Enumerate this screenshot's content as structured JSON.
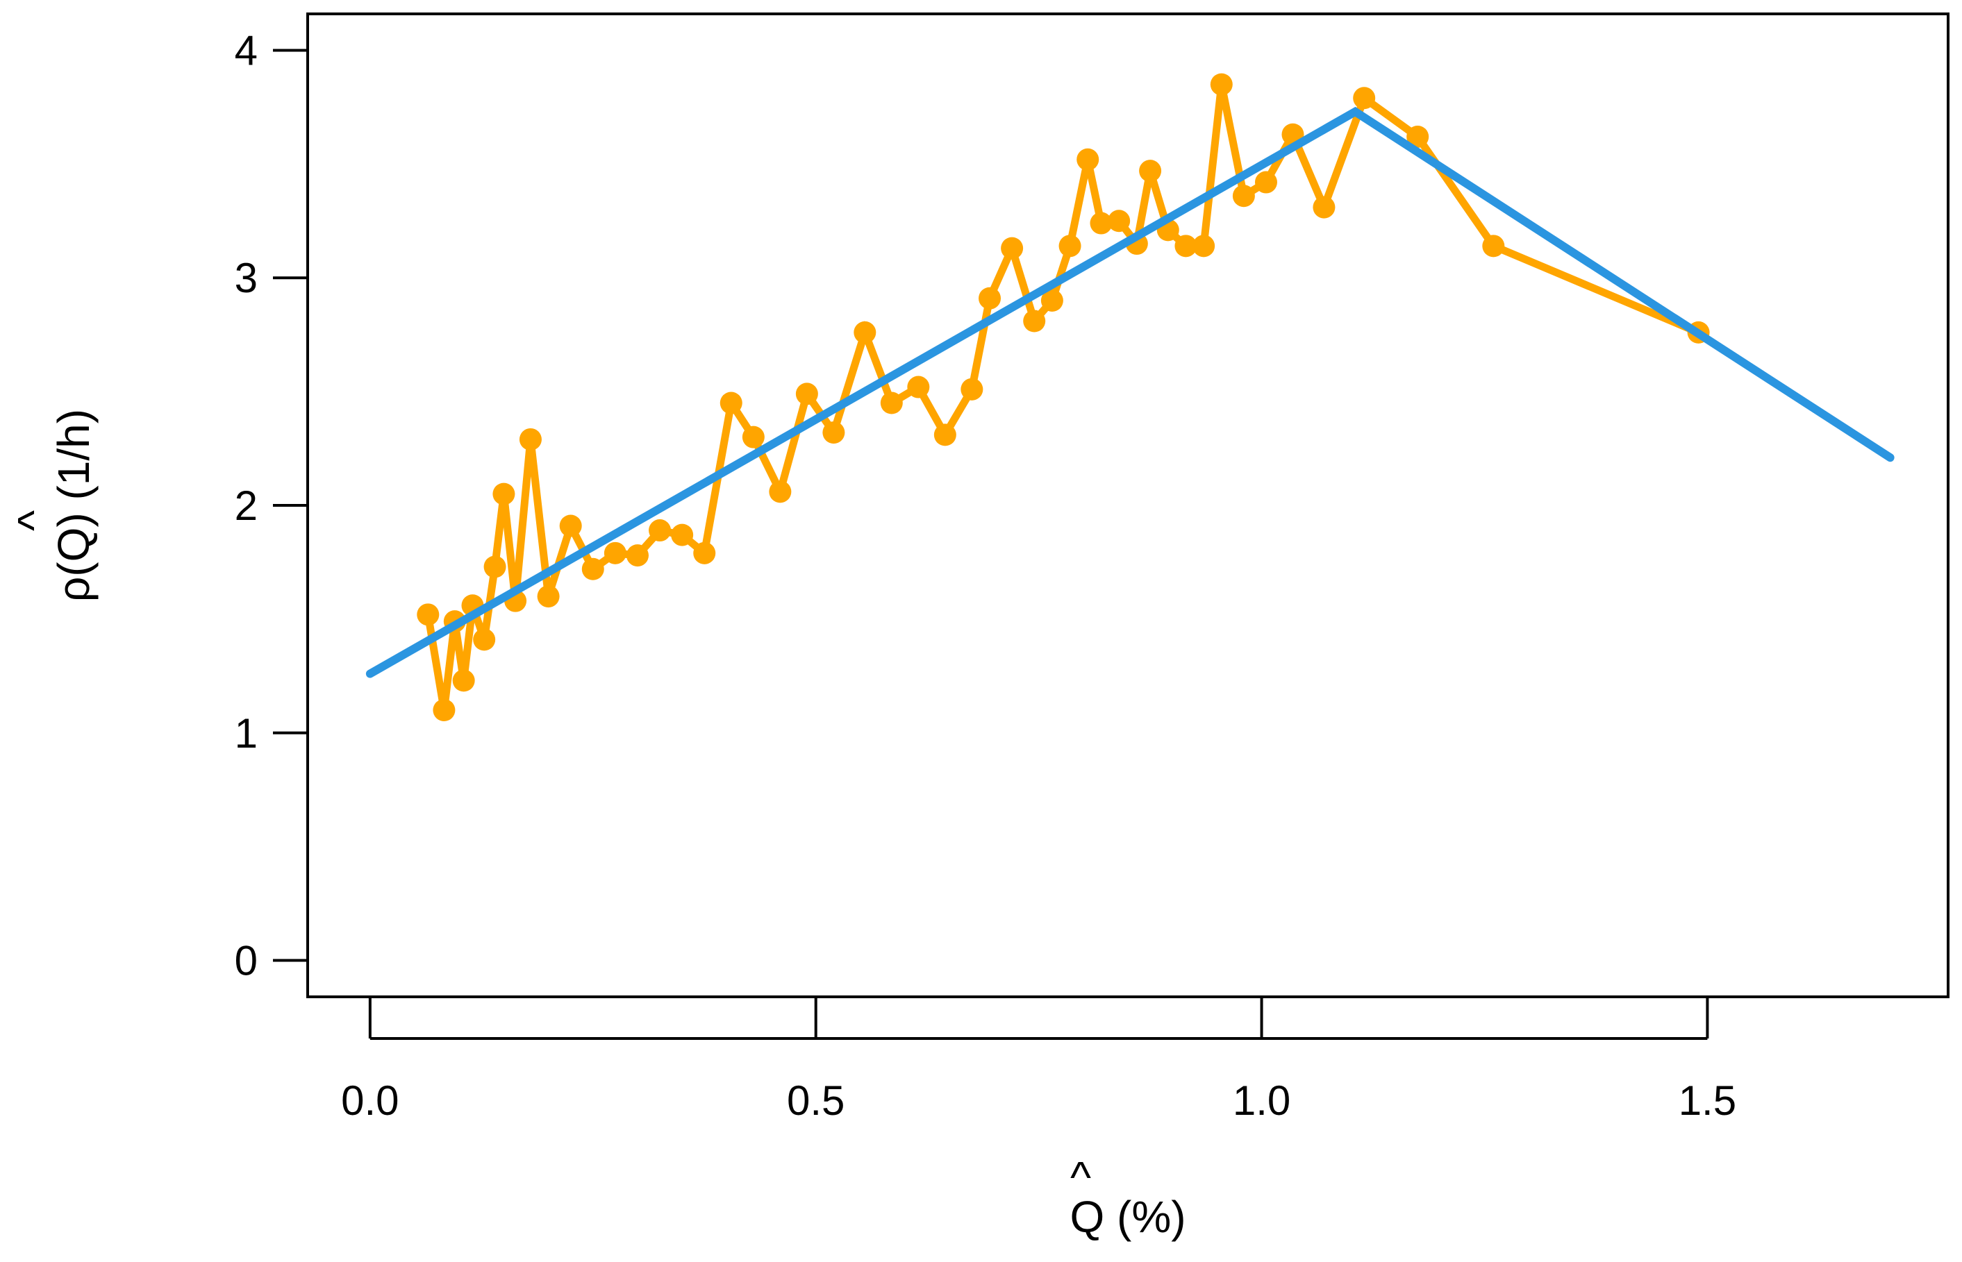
{
  "chart_data": {
    "type": "line",
    "title": "",
    "xlabel": "Q (%)",
    "xlabel_hat": "^",
    "ylabel": "ρ(Q) (1/h)",
    "ylabel_hat": "^",
    "xlim": [
      -0.07,
      1.77
    ],
    "ylim": [
      -0.16,
      4.16
    ],
    "xticks": [
      0.0,
      0.5,
      1.0,
      1.5
    ],
    "xtick_labels": [
      "0.0",
      "0.5",
      "1.0",
      "1.5"
    ],
    "yticks": [
      0,
      1,
      2,
      3,
      4
    ],
    "ytick_labels": [
      "0",
      "1",
      "2",
      "3",
      "4"
    ],
    "grid": false,
    "legend": false,
    "series": [
      {
        "color": "#FFA500",
        "markers": true,
        "x": [
          0.065,
          0.083,
          0.095,
          0.105,
          0.115,
          0.128,
          0.14,
          0.15,
          0.163,
          0.18,
          0.2,
          0.225,
          0.25,
          0.275,
          0.3,
          0.325,
          0.35,
          0.375,
          0.405,
          0.43,
          0.46,
          0.49,
          0.52,
          0.555,
          0.585,
          0.615,
          0.645,
          0.675,
          0.695,
          0.72,
          0.745,
          0.765,
          0.785,
          0.805,
          0.82,
          0.84,
          0.86,
          0.875,
          0.895,
          0.915,
          0.935,
          0.955,
          0.98,
          1.005,
          1.035,
          1.07,
          1.115,
          1.175,
          1.26,
          1.49
        ],
        "y": [
          1.52,
          1.1,
          1.49,
          1.23,
          1.56,
          1.41,
          1.73,
          2.05,
          1.58,
          2.29,
          1.6,
          1.91,
          1.72,
          1.79,
          1.78,
          1.89,
          1.87,
          1.79,
          2.45,
          2.3,
          2.06,
          2.49,
          2.32,
          2.76,
          2.45,
          2.52,
          2.31,
          2.51,
          2.91,
          3.13,
          2.81,
          2.9,
          3.14,
          3.52,
          3.24,
          3.25,
          3.15,
          3.47,
          3.21,
          3.14,
          3.14,
          3.85,
          3.36,
          3.42,
          3.63,
          3.31,
          3.79,
          3.62,
          3.14,
          2.76
        ]
      },
      {
        "color": "#2B95E0",
        "markers": false,
        "x": [
          0.0,
          1.105,
          1.705
        ],
        "y": [
          1.26,
          3.73,
          2.21
        ]
      }
    ]
  }
}
